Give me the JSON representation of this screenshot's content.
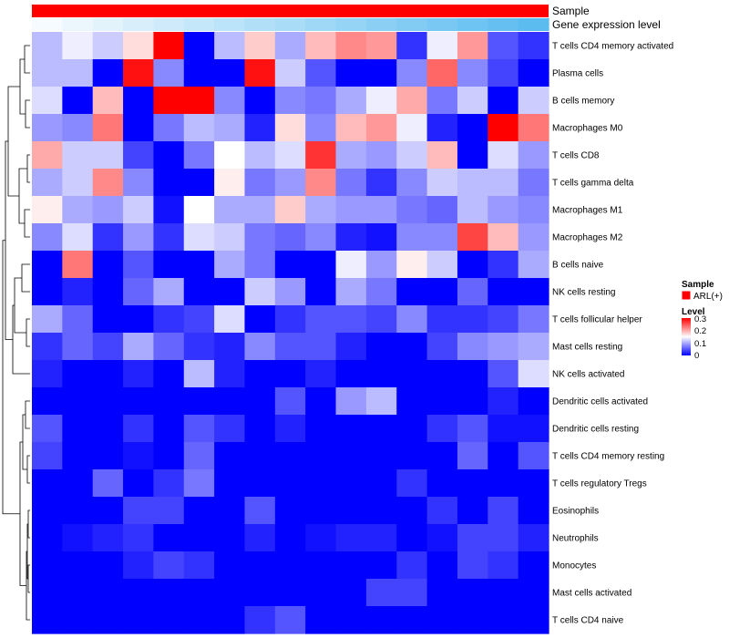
{
  "chart_data": {
    "type": "heatmap",
    "annotation_tracks": [
      "Sample",
      "Gene expression level"
    ],
    "sample_annotation_color": "#ff0000",
    "gene_expression_track": [
      0.02,
      0.04,
      0.06,
      0.08,
      0.1,
      0.12,
      0.14,
      0.16,
      0.18,
      0.2,
      0.22,
      0.24,
      0.26,
      0.28,
      0.3,
      0.32,
      0.34
    ],
    "gene_expression_track_colors": {
      "low": "#ffffff",
      "high": "#5bbcf0"
    },
    "rows": [
      "T cells CD4 memory activated",
      "Plasma cells",
      "B cells memory",
      "Macrophages M0",
      "T cells CD8",
      "T cells gamma delta",
      "Macrophages M1",
      "Macrophages M2",
      "B cells naive",
      "NK cells resting",
      "T cells follicular helper",
      "Mast cells resting",
      "NK cells activated",
      "Dendritic cells activated",
      "Dendritic cells resting",
      "T cells CD4 memory resting",
      "T cells regulatory  Tregs",
      "Eosinophils",
      "Neutrophils",
      "Monocytes",
      "Mast cells activated",
      "T cells CD4 naive"
    ],
    "values": [
      [
        0.11,
        0.14,
        0.12,
        0.17,
        0.3,
        0.0,
        0.11,
        0.18,
        0.1,
        0.19,
        0.22,
        0.21,
        0.03,
        0.14,
        0.21,
        0.05,
        0.03
      ],
      [
        0.11,
        0.11,
        0.0,
        0.29,
        0.08,
        0.0,
        0.0,
        0.29,
        0.12,
        0.05,
        0.0,
        0.0,
        0.08,
        0.24,
        0.08,
        0.04,
        0.0
      ],
      [
        0.13,
        0.0,
        0.19,
        0.0,
        0.3,
        0.3,
        0.08,
        0.0,
        0.08,
        0.07,
        0.1,
        0.14,
        0.2,
        0.07,
        0.12,
        0.0,
        0.12
      ],
      [
        0.09,
        0.08,
        0.23,
        0.0,
        0.07,
        0.11,
        0.1,
        0.02,
        0.17,
        0.08,
        0.19,
        0.21,
        0.14,
        0.02,
        0.0,
        0.3,
        0.23
      ],
      [
        0.2,
        0.12,
        0.12,
        0.04,
        0.0,
        0.07,
        0.15,
        0.11,
        0.13,
        0.27,
        0.1,
        0.09,
        0.12,
        0.19,
        0.0,
        0.13,
        0.09
      ],
      [
        0.1,
        0.12,
        0.22,
        0.08,
        0.0,
        0.0,
        0.16,
        0.07,
        0.09,
        0.22,
        0.07,
        0.03,
        0.08,
        0.12,
        0.11,
        0.11,
        0.07
      ],
      [
        0.16,
        0.1,
        0.09,
        0.12,
        0.01,
        0.15,
        0.1,
        0.1,
        0.18,
        0.1,
        0.09,
        0.09,
        0.07,
        0.06,
        0.11,
        0.09,
        0.08
      ],
      [
        0.08,
        0.13,
        0.03,
        0.09,
        0.03,
        0.13,
        0.12,
        0.07,
        0.06,
        0.08,
        0.02,
        0.01,
        0.08,
        0.08,
        0.26,
        0.19,
        0.09
      ],
      [
        0.0,
        0.23,
        0.0,
        0.05,
        0.0,
        0.0,
        0.1,
        0.07,
        0.0,
        0.0,
        0.14,
        0.09,
        0.16,
        0.12,
        0.0,
        0.03,
        0.1
      ],
      [
        0.0,
        0.02,
        0.0,
        0.06,
        0.1,
        0.0,
        0.0,
        0.12,
        0.09,
        0.0,
        0.1,
        0.07,
        0.0,
        0.0,
        0.06,
        0.0,
        0.0
      ],
      [
        0.1,
        0.06,
        0.0,
        0.0,
        0.03,
        0.04,
        0.13,
        0.0,
        0.03,
        0.05,
        0.05,
        0.04,
        0.08,
        0.03,
        0.03,
        0.04,
        0.07
      ],
      [
        0.03,
        0.06,
        0.04,
        0.1,
        0.06,
        0.03,
        0.02,
        0.08,
        0.05,
        0.05,
        0.02,
        0.0,
        0.0,
        0.04,
        0.08,
        0.09,
        0.1
      ],
      [
        0.02,
        0.0,
        0.0,
        0.02,
        0.0,
        0.11,
        0.02,
        0.0,
        0.0,
        0.02,
        0.0,
        0.0,
        0.0,
        0.0,
        0.0,
        0.05,
        0.13
      ],
      [
        0.0,
        0.0,
        0.0,
        0.0,
        0.0,
        0.0,
        0.0,
        0.0,
        0.05,
        0.0,
        0.09,
        0.11,
        0.0,
        0.0,
        0.0,
        0.02,
        0.0
      ],
      [
        0.05,
        0.0,
        0.0,
        0.03,
        0.0,
        0.05,
        0.03,
        0.0,
        0.02,
        0.0,
        0.0,
        0.0,
        0.0,
        0.03,
        0.05,
        0.01,
        0.01
      ],
      [
        0.04,
        0.0,
        0.0,
        0.01,
        0.0,
        0.06,
        0.0,
        0.0,
        0.0,
        0.0,
        0.0,
        0.0,
        0.0,
        0.0,
        0.06,
        0.0,
        0.05
      ],
      [
        0.0,
        0.0,
        0.06,
        0.0,
        0.03,
        0.07,
        0.0,
        0.0,
        0.0,
        0.0,
        0.0,
        0.0,
        0.03,
        0.0,
        0.0,
        0.0,
        0.0
      ],
      [
        0.0,
        0.0,
        0.0,
        0.04,
        0.04,
        0.0,
        0.0,
        0.05,
        0.0,
        0.0,
        0.0,
        0.0,
        0.0,
        0.03,
        0.0,
        0.04,
        0.0
      ],
      [
        0.0,
        0.01,
        0.02,
        0.03,
        0.0,
        0.0,
        0.0,
        0.02,
        0.0,
        0.01,
        0.02,
        0.02,
        0.0,
        0.01,
        0.04,
        0.04,
        0.02
      ],
      [
        0.0,
        0.0,
        0.0,
        0.02,
        0.04,
        0.03,
        0.0,
        0.0,
        0.0,
        0.0,
        0.0,
        0.0,
        0.03,
        0.0,
        0.04,
        0.03,
        0.0
      ],
      [
        0.0,
        0.0,
        0.0,
        0.0,
        0.0,
        0.0,
        0.0,
        0.0,
        0.0,
        0.0,
        0.0,
        0.04,
        0.04,
        0.0,
        0.0,
        0.0,
        0.0
      ],
      [
        0.0,
        0.0,
        0.0,
        0.0,
        0.0,
        0.0,
        0.0,
        0.03,
        0.05,
        0.0,
        0.0,
        0.0,
        0.0,
        0.0,
        0.0,
        0.0,
        0.0
      ]
    ],
    "color_scale": {
      "low": "#0000ff",
      "mid": "#ffffff",
      "high": "#ff0000",
      "min": 0,
      "mid_value": 0.15,
      "max": 0.3
    },
    "legend": {
      "sample_title": "Sample",
      "sample_entries": [
        {
          "label": "ARL(+)",
          "color": "#ff0000"
        }
      ],
      "level_title": "Level",
      "level_ticks": [
        "0.3",
        "0.2",
        "0.1",
        "0"
      ]
    },
    "row_dendrogram": true,
    "legend_position": "right"
  }
}
